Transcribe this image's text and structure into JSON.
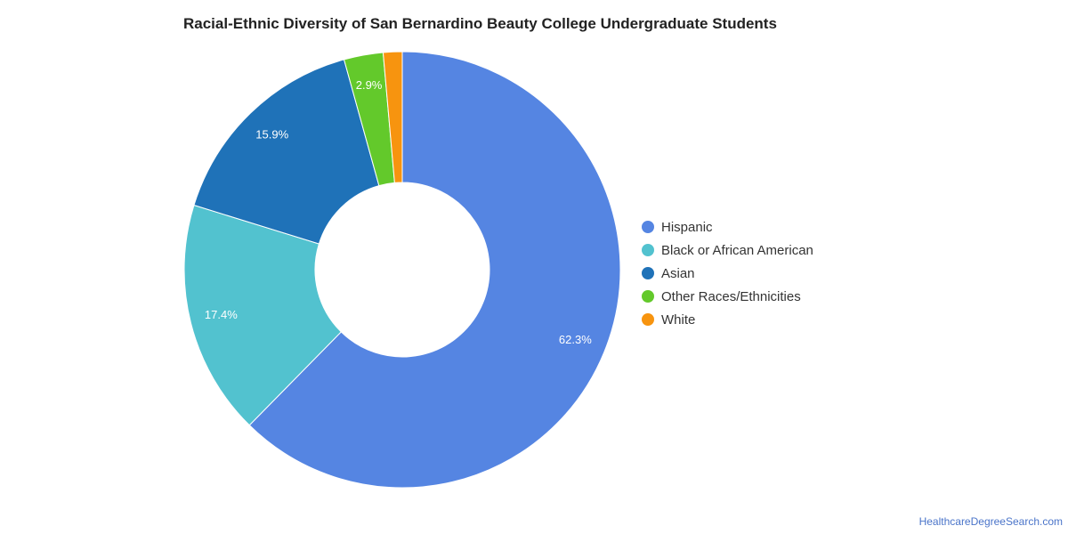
{
  "title": "Racial-Ethnic Diversity of San Bernardino Beauty College Undergraduate Students",
  "credit": "HealthcareDegreeSearch.com",
  "chart_data": {
    "type": "pie",
    "donut": true,
    "categories": [
      "Hispanic",
      "Black or African American",
      "Asian",
      "Other Races/Ethnicities",
      "White"
    ],
    "values": [
      62.3,
      17.4,
      15.9,
      2.9,
      1.4
    ],
    "data_labels": [
      "62.3%",
      "17.4%",
      "15.9%",
      "2.9%",
      ""
    ],
    "colors": [
      "#5585e2",
      "#52c2cf",
      "#1f72b8",
      "#63c92b",
      "#f7940f"
    ],
    "legend_placement": "right",
    "start_angle_deg": 0,
    "direction": "clockwise"
  }
}
